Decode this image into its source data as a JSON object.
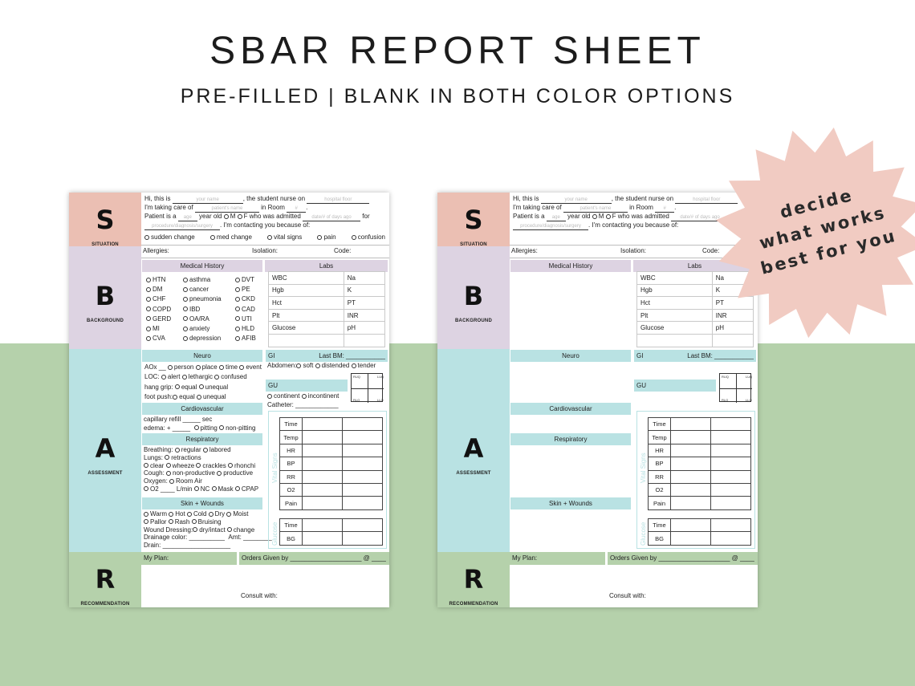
{
  "header": {
    "title": "SBAR REPORT SHEET",
    "subtitle": "PRE-FILLED | BLANK IN BOTH COLOR OPTIONS"
  },
  "badge": {
    "lines": [
      "decide",
      "what works",
      "best for you"
    ],
    "color": "#f1cbc2"
  },
  "colors": {
    "situation": "#ebbfb3",
    "background": "#ddd3e2",
    "assessment": "#b9e2e3",
    "recommendation": "#b5d1ab",
    "page_band": "#b5d1ab"
  },
  "sidebar": {
    "s_letter": "S",
    "s_label": "SITUATION",
    "b_letter": "B",
    "b_label": "BACKGROUND",
    "a_letter": "A",
    "a_label": "ASSESSMENT",
    "r_letter": "R",
    "r_label": "RECOMMENDATION"
  },
  "situation": {
    "hi_this_is": "Hi, this is",
    "your_name_ph": "your name",
    "student_nurse_on": ", the student nurse on",
    "hospital_floor_ph": "hospital floor",
    "taking_care_of": "I'm taking care of",
    "patients_name_ph": "patient's name",
    "in_room": "in Room",
    "room_ph": "#",
    "patient_is_a": "Patient is a",
    "age_ph": "age",
    "year_old": "year old",
    "m": "M",
    "f": "F",
    "who_was_admitted": "who was admitted",
    "days_ago_ph": "date/# of days ago",
    "for": "for",
    "diagnosis_ph": "procedure/diagnosis/surgery",
    "contacting_because": ". I'm contacting you because of:",
    "reasons": [
      "sudden change",
      "med change",
      "vital signs",
      "pain",
      "confusion"
    ]
  },
  "fields": {
    "allergies": "Allergies:",
    "isolation": "Isolation:",
    "code": "Code:"
  },
  "medical_history": {
    "heading": "Medical History",
    "col1": [
      "HTN",
      "DM",
      "CHF",
      "COPD",
      "GERD",
      "MI",
      "CVA"
    ],
    "col2": [
      "asthma",
      "cancer",
      "pneumonia",
      "IBD",
      "OA/RA",
      "anxiety",
      "depression"
    ],
    "col3": [
      "DVT",
      "PE",
      "CKD",
      "CAD",
      "UTI",
      "HLD",
      "AFIB"
    ]
  },
  "labs": {
    "heading": "Labs",
    "rows": [
      [
        "WBC",
        "Na"
      ],
      [
        "Hgb",
        "K"
      ],
      [
        "Hct",
        "PT"
      ],
      [
        "Plt",
        "INR"
      ],
      [
        "Glucose",
        "pH"
      ],
      [
        "",
        ""
      ]
    ]
  },
  "neuro": {
    "heading": "Neuro",
    "aox": "AOx __",
    "aox_opts": [
      "person",
      "place",
      "time",
      "event"
    ],
    "loc": "LOC:",
    "loc_opts": [
      "alert",
      "lethargic",
      "confused"
    ],
    "hang_grip": "hang grip:",
    "foot_push": "foot push:",
    "grip_opts": [
      "equal",
      "unequal"
    ]
  },
  "cardio": {
    "heading": "Cardiovascular",
    "cap_refill": "capillary refill _____ sec",
    "edema": "edema: + _____",
    "edema_opts": [
      "pitting",
      "non-pitting"
    ]
  },
  "resp": {
    "heading": "Respiratory",
    "breathing": "Breathing:",
    "breathing_opts": [
      "regular",
      "labored"
    ],
    "lungs": "Lungs:",
    "retractions": "retractions",
    "lung_opts": [
      "clear",
      "wheeze",
      "crackles",
      "rhonchi"
    ],
    "cough": "Cough:",
    "cough_opts": [
      "non-productive",
      "productive"
    ],
    "oxygen": "Oxygen:",
    "room_air": "Room Air",
    "o2": "O2",
    "lmin": "L/min",
    "o2_opts": [
      "NC",
      "Mask",
      "CPAP"
    ]
  },
  "skin": {
    "heading": "Skin + Wounds",
    "row1": [
      "Warm",
      "Hot",
      "Cold",
      "Dry",
      "Moist"
    ],
    "row2": [
      "Pallor",
      "Rash",
      "Bruising"
    ],
    "wound_dressing": "Wound Dressing:",
    "wound_opts": [
      "dry/intact",
      "change"
    ],
    "drainage_color": "Drainage color: __________",
    "amt": "Amt: ________",
    "drain": "Drain: ___________________"
  },
  "gi": {
    "heading": "GI",
    "last_bm": "Last BM: ___________",
    "abdomen": "Abdomen:",
    "abdomen_opts": [
      "soft",
      "distended",
      "tender"
    ],
    "quadrants": [
      "RUQ",
      "LUQ",
      "RLQ",
      "LLQ"
    ]
  },
  "gu": {
    "heading": "GU",
    "opts": [
      "continent",
      "incontinent"
    ],
    "catheter": "Catheter: ____________"
  },
  "vitals": {
    "side_label": "Vital Signs",
    "rows": [
      "Time",
      "Temp",
      "HR",
      "BP",
      "RR",
      "O2",
      "Pain"
    ]
  },
  "glucose": {
    "side_label": "Glucose",
    "rows": [
      "Time",
      "BG"
    ]
  },
  "recommendation": {
    "my_plan": "My Plan:",
    "orders_given_by": "Orders Given by ____________________ @ ____",
    "consult_with": "Consult with:"
  }
}
